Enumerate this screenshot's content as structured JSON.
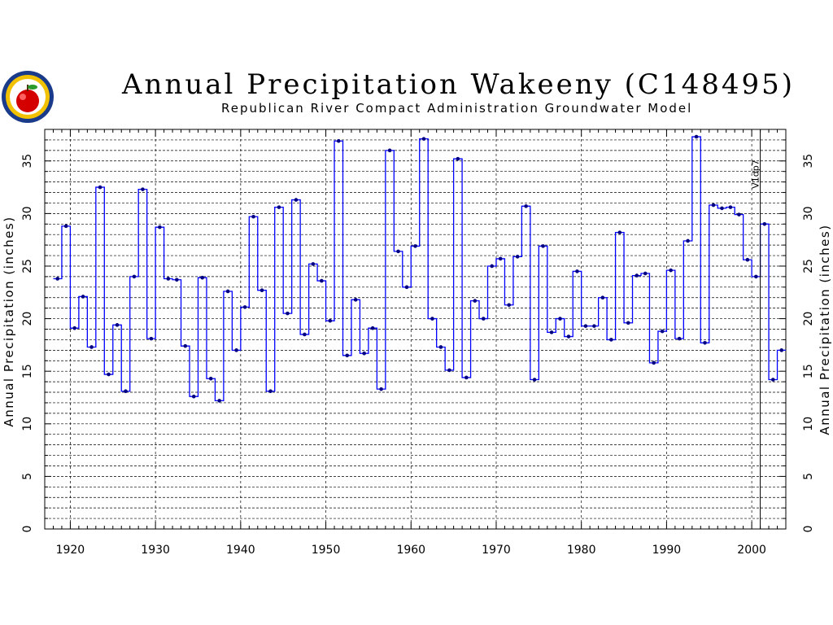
{
  "title": "Annual Precipitation Wakeeny (C148495)",
  "subtitle": "Republican River Compact Administration Groundwater Model",
  "colors": {
    "series": "#0000ff",
    "series_dark": "#000080",
    "grid": "#000000"
  },
  "chart_data": {
    "type": "line",
    "step": true,
    "title": "Annual Precipitation Wakeeny (C148495)",
    "subtitle": "Republican River Compact Administration Groundwater Model",
    "ylabel_left": "Annual Precipitation (inches)",
    "ylabel_right": "Annual Precipitation (inches)",
    "xlim": [
      1917,
      2004
    ],
    "ylim": [
      0,
      38
    ],
    "x_ticks": [
      1920,
      1930,
      1940,
      1950,
      1960,
      1970,
      1980,
      1990,
      2000
    ],
    "y_ticks": [
      0,
      5,
      10,
      15,
      20,
      25,
      30,
      35
    ],
    "grid": true,
    "annotation": {
      "x": 2001,
      "label": "V1dp7"
    },
    "series": [
      {
        "x": [
          1918,
          1919,
          1920,
          1921,
          1922,
          1923,
          1924,
          1925,
          1926,
          1927,
          1928,
          1929,
          1930,
          1931,
          1932,
          1933,
          1934,
          1935,
          1936,
          1937,
          1938,
          1939,
          1940,
          1941,
          1942,
          1943,
          1944,
          1945,
          1946,
          1947,
          1948,
          1949,
          1950,
          1951,
          1952,
          1953,
          1954,
          1955,
          1956,
          1957,
          1958,
          1959,
          1960,
          1961,
          1962,
          1963,
          1964,
          1965,
          1966,
          1967,
          1968,
          1969,
          1970,
          1971,
          1972,
          1973,
          1974,
          1975,
          1976,
          1977,
          1978,
          1979,
          1980,
          1981,
          1982,
          1983,
          1984,
          1985,
          1986,
          1987,
          1988,
          1989,
          1990,
          1991,
          1992,
          1993,
          1994,
          1995,
          1996,
          1997,
          1998,
          1999,
          2000,
          2001,
          2002,
          2003
        ],
        "values": [
          23.8,
          28.8,
          19.1,
          22.1,
          17.3,
          32.5,
          14.7,
          19.4,
          13.1,
          24.0,
          32.3,
          18.1,
          28.7,
          23.8,
          23.7,
          17.4,
          12.6,
          23.9,
          14.3,
          12.2,
          22.6,
          17.0,
          21.1,
          29.7,
          22.7,
          13.1,
          30.6,
          20.5,
          31.3,
          18.5,
          25.2,
          23.6,
          19.8,
          36.9,
          16.5,
          21.8,
          16.7,
          19.1,
          13.3,
          36.0,
          26.4,
          23.0,
          26.9,
          37.1,
          20.0,
          17.3,
          15.1,
          35.2,
          14.4,
          21.7,
          20.0,
          25.0,
          25.7,
          21.3,
          25.9,
          30.7,
          14.2,
          26.9,
          18.7,
          20.0,
          18.3,
          24.5,
          19.3,
          19.3,
          22.0,
          18.0,
          28.2,
          19.6,
          24.1,
          24.3,
          15.8,
          18.8,
          24.6,
          18.1,
          27.4,
          37.3,
          17.7,
          30.8,
          30.5,
          30.6,
          29.9,
          25.6,
          24.0,
          29.0,
          14.2,
          17.0
        ]
      }
    ]
  }
}
